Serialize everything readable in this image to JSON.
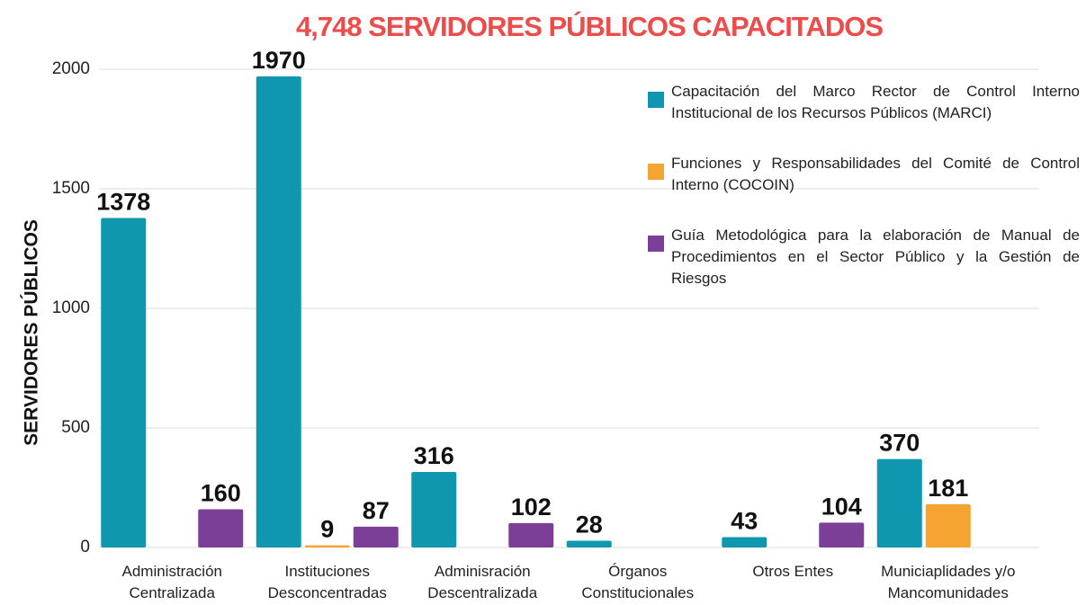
{
  "chart_data": {
    "type": "bar",
    "title": "4,748 SERVIDORES PÚBLICOS CAPACITADOS",
    "y_label": "SERVIDORES PÚBLICOS",
    "categories": [
      "Administración Centralizada",
      "Instituciones Desconcentradas",
      "Adminisración Descentralizada",
      "Órganos Constitucionales",
      "Otros Entes",
      "Municiaplidades y/o Mancomunidades"
    ],
    "series": [
      {
        "name": "Capacitación del Marco Rector de Control Interno Institucional de los Recursos Públicos (MARCI)",
        "color": "#0f97b0",
        "values": [
          1378,
          1970,
          316,
          28,
          43,
          370
        ]
      },
      {
        "name": "Funciones y Responsabilidades del Comité de Control Interno (COCOIN)",
        "color": "#f5a431",
        "values": [
          null,
          9,
          null,
          null,
          null,
          181
        ]
      },
      {
        "name": "Guía Metodológica para la elaboración de Manual de Procedimientos en el Sector Público y la Gestión de Riesgos",
        "color": "#7b3f98",
        "values": [
          160,
          87,
          102,
          null,
          104,
          null
        ]
      }
    ],
    "ylim": [
      0,
      2000
    ],
    "yticks": [
      0,
      500,
      1000,
      1500,
      2000
    ],
    "grid": true
  }
}
